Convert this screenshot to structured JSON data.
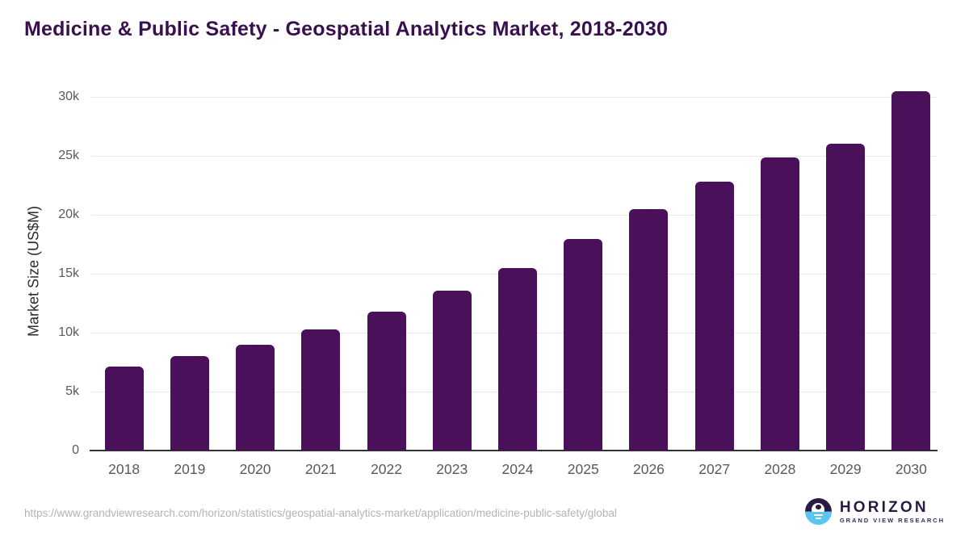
{
  "header": {
    "title": "Medicine & Public Safety - Geospatial Analytics Market, 2018-2030",
    "title_color": "#38104E"
  },
  "chart_data": {
    "type": "bar",
    "title": "Medicine & Public Safety - Geospatial Analytics Market, 2018-2030",
    "categories": [
      "2018",
      "2019",
      "2020",
      "2021",
      "2022",
      "2023",
      "2024",
      "2025",
      "2026",
      "2027",
      "2028",
      "2029",
      "2030"
    ],
    "values": [
      7100,
      8000,
      9000,
      10250,
      11800,
      13550,
      15500,
      17950,
      20450,
      22800,
      24850,
      26050,
      30500
    ],
    "xlabel": "",
    "ylabel": "Market Size (US$M)",
    "ylim": [
      0,
      30000
    ],
    "yticks": [
      0,
      5000,
      10000,
      15000,
      20000,
      25000,
      30000
    ],
    "ytick_labels": [
      "0",
      "5k",
      "10k",
      "15k",
      "20k",
      "25k",
      "30k"
    ],
    "bar_color": "#4A115A",
    "gridline_color": "#e8e8e8",
    "axis_color": "#333333",
    "grid": true,
    "legend": "none"
  },
  "footer": {
    "source_url": "https://www.grandviewresearch.com/horizon/statistics/geospatial-analytics-market/application/medicine-public-safety/global",
    "logo": {
      "brand": "HORIZON",
      "tagline": "GRAND VIEW RESEARCH",
      "brand_color": "#2B1A44",
      "tagline_color": "#3B2A5D",
      "circle_top_color": "#2B1A44",
      "circle_bottom_color": "#5BC5EF"
    }
  }
}
